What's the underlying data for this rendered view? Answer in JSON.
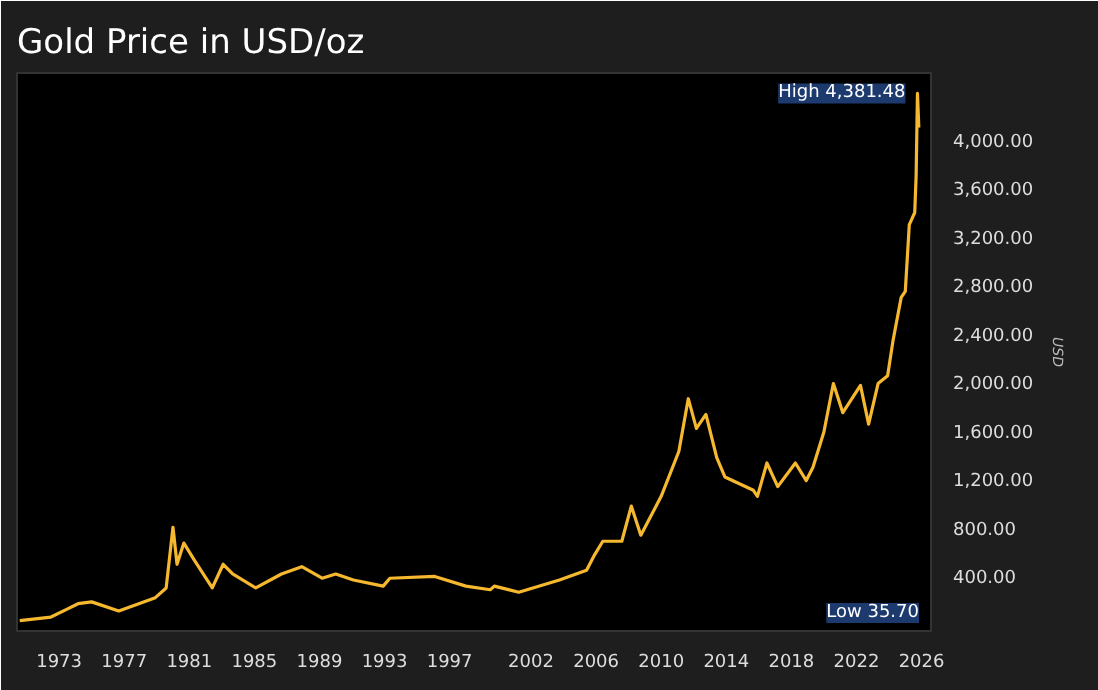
{
  "chart_data": {
    "type": "line",
    "title": "Gold Price in USD/oz",
    "ylabel": "USD",
    "x": [
      "1970-08",
      "1972-07",
      "1973-07",
      "1974-03",
      "1975-01",
      "1976-09",
      "1978-12",
      "1979-08",
      "1980-01",
      "1980-04",
      "1980-09",
      "1981-05",
      "1982-06",
      "1983-02",
      "1983-09",
      "1985-02",
      "1986-09",
      "1987-12",
      "1989-03",
      "1990-01",
      "1991-02",
      "1992-12",
      "1993-05",
      "1996-02",
      "1998-01",
      "1999-07",
      "1999-10",
      "2001-04",
      "2003-10",
      "2005-06",
      "2005-12",
      "2006-06",
      "2007-08",
      "2008-03",
      "2008-10",
      "2010-01",
      "2011-02",
      "2011-09",
      "2012-03",
      "2012-10",
      "2013-06",
      "2013-12",
      "2015-09",
      "2015-12",
      "2016-07",
      "2017-03",
      "2018-04",
      "2018-12",
      "2019-05",
      "2020-01",
      "2020-08",
      "2021-03",
      "2022-04",
      "2022-10",
      "2023-05",
      "2023-12",
      "2024-04",
      "2024-10",
      "2025-01",
      "2025-04",
      "2025-06",
      "2025-08",
      "2025-09",
      "2025-10",
      "2025-11"
    ],
    "series": [
      {
        "color": "#f5b82e",
        "values": [
          35.7,
          65,
          130,
          175,
          190,
          115,
          225,
          305,
          805,
          500,
          675,
          530,
          305,
          500,
          420,
          305,
          420,
          480,
          385,
          420,
          370,
          320,
          385,
          400,
          320,
          290,
          320,
          270,
          370,
          450,
          580,
          690,
          690,
          980,
          740,
          1060,
          1430,
          1865,
          1620,
          1735,
          1380,
          1220,
          1110,
          1060,
          1335,
          1140,
          1335,
          1190,
          1300,
          1590,
          1990,
          1750,
          1975,
          1655,
          1990,
          2055,
          2345,
          2700,
          2750,
          3300,
          3350,
          3400,
          3700,
          4381.48,
          4100
        ]
      }
    ],
    "xlim": [
      "1970-06",
      "2026-08"
    ],
    "xticks": [
      "1973",
      "1977",
      "1981",
      "1985",
      "1989",
      "1993",
      "1997",
      "2002",
      "2006",
      "2010",
      "2014",
      "2018",
      "2022",
      "2026"
    ],
    "ylim": [
      -50,
      4550
    ],
    "yticks": [
      {
        "value": 400,
        "label": "400.00"
      },
      {
        "value": 800,
        "label": "800.00"
      },
      {
        "value": 1200,
        "label": "1,200.00"
      },
      {
        "value": 1600,
        "label": "1,600.00"
      },
      {
        "value": 2000,
        "label": "2,000.00"
      },
      {
        "value": 2400,
        "label": "2,400.00"
      },
      {
        "value": 2800,
        "label": "2,800.00"
      },
      {
        "value": 3200,
        "label": "3,200.00"
      },
      {
        "value": 3600,
        "label": "3,600.00"
      },
      {
        "value": 4000,
        "label": "4,000.00"
      }
    ],
    "annotations": [
      {
        "text": "High 4,381.48",
        "x": "2025-10",
        "y": 4381.48
      },
      "Low 35.70"
    ],
    "grid": false
  }
}
